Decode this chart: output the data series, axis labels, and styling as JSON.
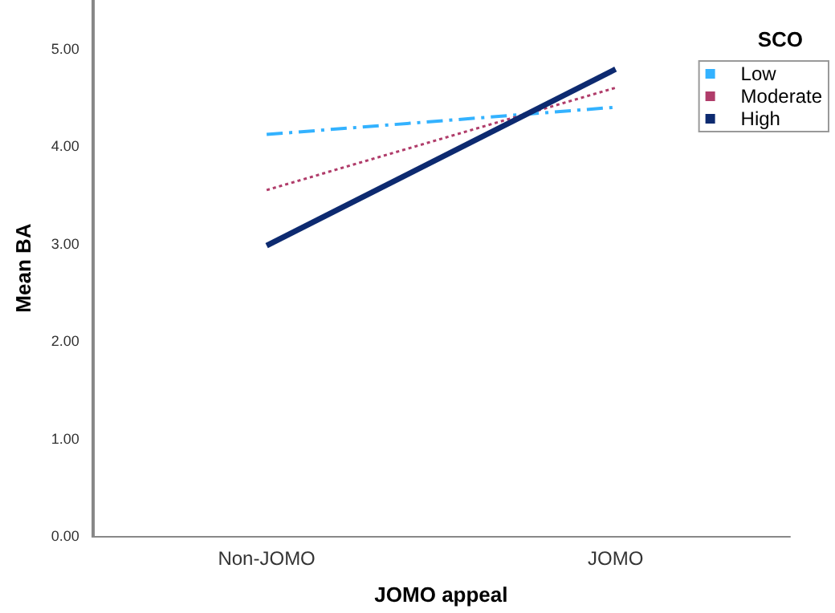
{
  "chart_data": {
    "type": "line",
    "xlabel": "JOMO appeal",
    "ylabel": "Mean BA",
    "legend_title": "SCO",
    "categories": [
      "Non-JOMO",
      "JOMO"
    ],
    "series": [
      {
        "name": "Low",
        "color": "#33b2ff",
        "line_style": "dashed",
        "values": [
          4.12,
          4.4
        ]
      },
      {
        "name": "Moderate",
        "color": "#b03c6a",
        "line_style": "dotted",
        "values": [
          3.55,
          4.6
        ]
      },
      {
        "name": "High",
        "color": "#0d2a70",
        "line_style": "solid",
        "values": [
          2.98,
          4.79
        ]
      }
    ],
    "ylim": [
      0,
      5.5
    ],
    "yticks": [
      {
        "value": 0,
        "label": "0.00"
      },
      {
        "value": 1,
        "label": "1.00"
      },
      {
        "value": 2,
        "label": "2.00"
      },
      {
        "value": 3,
        "label": "3.00"
      },
      {
        "value": 4,
        "label": "4.00"
      },
      {
        "value": 5,
        "label": "5.00"
      }
    ],
    "grid": false,
    "legend": "top right",
    "marker": "none"
  }
}
